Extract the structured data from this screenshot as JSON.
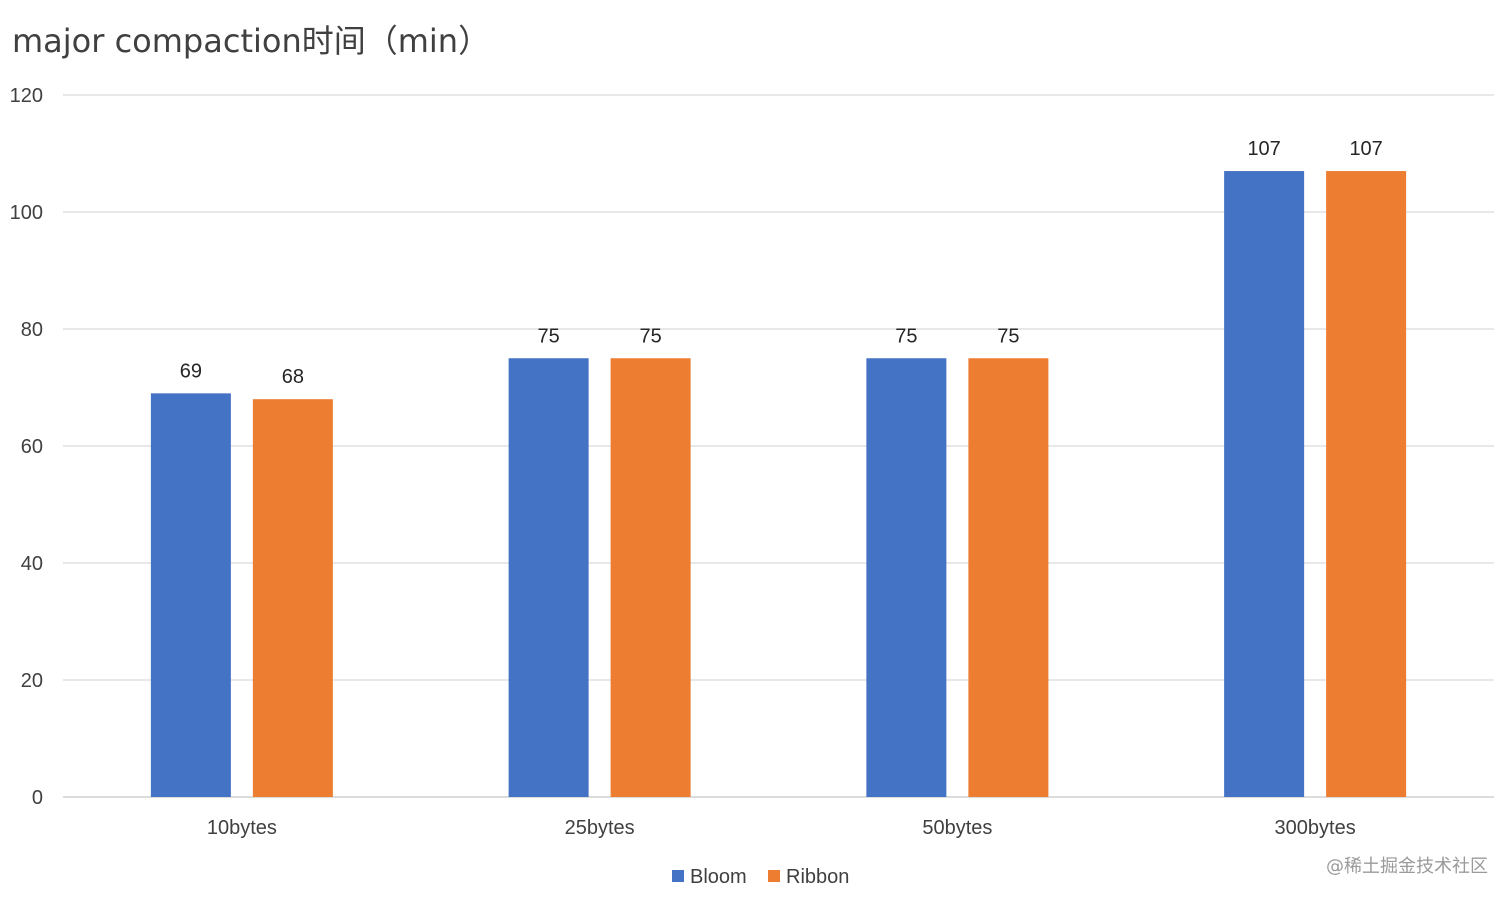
{
  "chart_data": {
    "type": "bar",
    "title": "major compaction时间（min）",
    "categories": [
      "10bytes",
      "25bytes",
      "50bytes",
      "300bytes"
    ],
    "series": [
      {
        "name": "Bloom",
        "color": "#4472C4",
        "values": [
          69,
          75,
          75,
          107
        ]
      },
      {
        "name": "Ribbon",
        "color": "#ED7D31",
        "values": [
          68,
          75,
          75,
          107
        ]
      }
    ],
    "ylim": [
      0,
      120
    ],
    "yticks": [
      0,
      20,
      40,
      60,
      80,
      100,
      120
    ],
    "xlabel": "",
    "ylabel": "",
    "grid": true,
    "legend_position": "bottom-center",
    "data_labels": true
  },
  "watermark": "@稀土掘金技术社区"
}
